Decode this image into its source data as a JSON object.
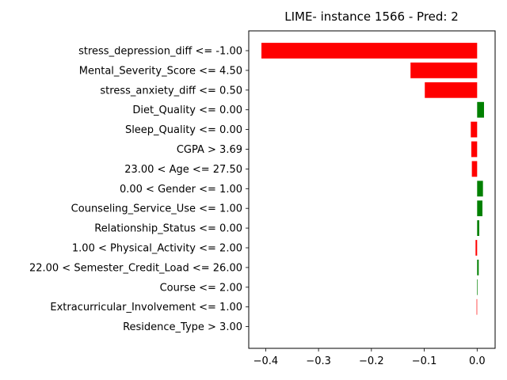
{
  "chart_data": {
    "type": "bar",
    "orientation": "horizontal",
    "title": "LIME- instance 1566 - Pred: 2",
    "xlabel": "",
    "ylabel": "",
    "categories": [
      "stress_depression_diff <= -1.00",
      "Mental_Severity_Score <= 4.50",
      "stress_anxiety_diff <= 0.50",
      "Diet_Quality <= 0.00",
      "Sleep_Quality <= 0.00",
      "CGPA > 3.69",
      "23.00 < Age <= 27.50",
      "0.00 < Gender <= 1.00",
      "Counseling_Service_Use <= 1.00",
      "Relationship_Status <= 0.00",
      "1.00 < Physical_Activity <= 2.00",
      "22.00 < Semester_Credit_Load <= 26.00",
      "Course <= 2.00",
      "Extracurricular_Involvement <= 1.00",
      "Residence_Type > 3.00"
    ],
    "values": [
      -0.408,
      -0.126,
      -0.099,
      0.013,
      -0.012,
      -0.011,
      -0.01,
      0.011,
      0.01,
      0.004,
      -0.003,
      0.003,
      0.001,
      -0.001,
      0.0
    ],
    "xlim": [
      -0.432,
      0.034
    ],
    "xticks": [
      -0.4,
      -0.3,
      -0.2,
      -0.1,
      0.0
    ],
    "xtick_labels": [
      "−0.4",
      "−0.3",
      "−0.2",
      "−0.1",
      "0.0"
    ],
    "grid": false,
    "colors": {
      "positive": "#008000",
      "negative": "#ff0000"
    }
  }
}
